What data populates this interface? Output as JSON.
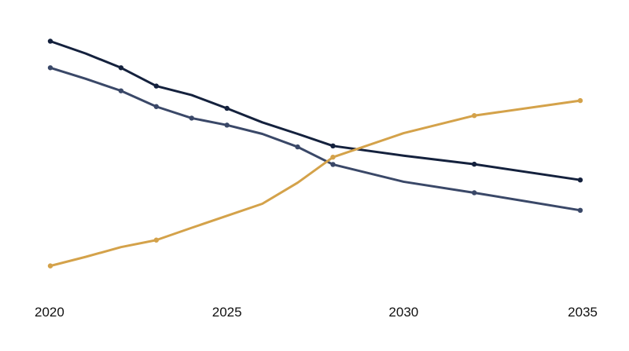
{
  "chart_data": {
    "type": "line",
    "title": "",
    "xlabel": "",
    "ylabel": "",
    "xlim": [
      2020,
      2035
    ],
    "ylim": [
      0,
      100
    ],
    "x_ticks": [
      "2020",
      "2025",
      "2030",
      "2035"
    ],
    "grid": false,
    "legend": "none",
    "series": [
      {
        "color": "#14213d",
        "points": [
          {
            "x": 2020,
            "y": 91.7,
            "marker": true
          },
          {
            "x": 2021,
            "y": 86.8,
            "marker": false
          },
          {
            "x": 2022,
            "y": 81.1,
            "marker": true
          },
          {
            "x": 2023,
            "y": 73.8,
            "marker": true
          },
          {
            "x": 2024,
            "y": 70.2,
            "marker": false
          },
          {
            "x": 2025,
            "y": 64.9,
            "marker": true
          },
          {
            "x": 2026,
            "y": 59.3,
            "marker": false
          },
          {
            "x": 2027,
            "y": 54.7,
            "marker": false
          },
          {
            "x": 2028,
            "y": 49.9,
            "marker": true
          },
          {
            "x": 2030,
            "y": 46.0,
            "marker": false
          },
          {
            "x": 2032,
            "y": 42.6,
            "marker": true
          },
          {
            "x": 2035,
            "y": 36.3,
            "marker": true
          }
        ]
      },
      {
        "color": "#3a4868",
        "points": [
          {
            "x": 2020,
            "y": 81.1,
            "marker": true
          },
          {
            "x": 2021,
            "y": 76.7,
            "marker": false
          },
          {
            "x": 2022,
            "y": 71.9,
            "marker": true
          },
          {
            "x": 2023,
            "y": 65.6,
            "marker": true
          },
          {
            "x": 2024,
            "y": 61.0,
            "marker": true
          },
          {
            "x": 2025,
            "y": 58.2,
            "marker": true
          },
          {
            "x": 2026,
            "y": 54.7,
            "marker": false
          },
          {
            "x": 2027,
            "y": 49.5,
            "marker": true
          },
          {
            "x": 2028,
            "y": 42.5,
            "marker": true
          },
          {
            "x": 2030,
            "y": 35.6,
            "marker": false
          },
          {
            "x": 2032,
            "y": 31.2,
            "marker": true
          },
          {
            "x": 2035,
            "y": 24.2,
            "marker": true
          }
        ]
      },
      {
        "color": "#d4a24a",
        "points": [
          {
            "x": 2020,
            "y": 2.0,
            "marker": true
          },
          {
            "x": 2021,
            "y": 5.6,
            "marker": false
          },
          {
            "x": 2022,
            "y": 9.5,
            "marker": false
          },
          {
            "x": 2023,
            "y": 12.3,
            "marker": true
          },
          {
            "x": 2024,
            "y": 17.2,
            "marker": false
          },
          {
            "x": 2025,
            "y": 22.0,
            "marker": false
          },
          {
            "x": 2026,
            "y": 26.8,
            "marker": false
          },
          {
            "x": 2027,
            "y": 35.2,
            "marker": false
          },
          {
            "x": 2028,
            "y": 45.4,
            "marker": true
          },
          {
            "x": 2030,
            "y": 55.0,
            "marker": false
          },
          {
            "x": 2032,
            "y": 62.0,
            "marker": true
          },
          {
            "x": 2035,
            "y": 68.0,
            "marker": true
          }
        ]
      }
    ]
  }
}
